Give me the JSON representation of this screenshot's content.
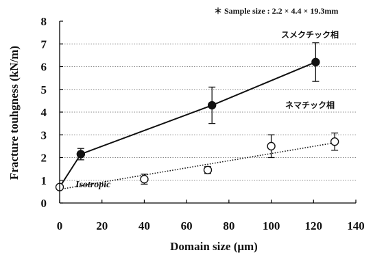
{
  "chart_data": {
    "type": "scatter",
    "note": "＊ Sample size : 2.2 × 4.4 × 19.3mm",
    "xlabel": "Domain size (μm)",
    "ylabel": "Fracture touhgness (kN/m)",
    "xlim": [
      0,
      140
    ],
    "ylim": [
      0,
      8
    ],
    "x_ticks": [
      "0",
      "20",
      "40",
      "60",
      "80",
      "100",
      "120",
      "140"
    ],
    "y_ticks": [
      "0",
      "1",
      "2",
      "3",
      "4",
      "5",
      "6",
      "7",
      "8"
    ],
    "grid": "horizontal dotted",
    "series": [
      {
        "name": "スメクチック相",
        "marker": "filled-circle",
        "line": "solid",
        "points": [
          {
            "x": 10,
            "y": 2.15,
            "err": 0.25
          },
          {
            "x": 72,
            "y": 4.3,
            "err": 0.8
          },
          {
            "x": 121,
            "y": 6.2,
            "err": 0.85
          }
        ],
        "line_points": [
          [
            0,
            0.7
          ],
          [
            10,
            2.15
          ],
          [
            72,
            4.3
          ],
          [
            121,
            6.2
          ]
        ]
      },
      {
        "name": "ネマチック相",
        "marker": "open-circle",
        "line": "dotted",
        "points": [
          {
            "x": 40,
            "y": 1.05,
            "err": 0.22
          },
          {
            "x": 70,
            "y": 1.45,
            "err": 0.15
          },
          {
            "x": 100,
            "y": 2.5,
            "err": 0.5
          },
          {
            "x": 130,
            "y": 2.7,
            "err": 0.38
          }
        ],
        "line_points": [
          [
            0,
            0.6
          ],
          [
            130,
            2.65
          ]
        ]
      }
    ],
    "isotropic": {
      "label": "Isotropic",
      "x": 0,
      "y": 0.7
    }
  }
}
